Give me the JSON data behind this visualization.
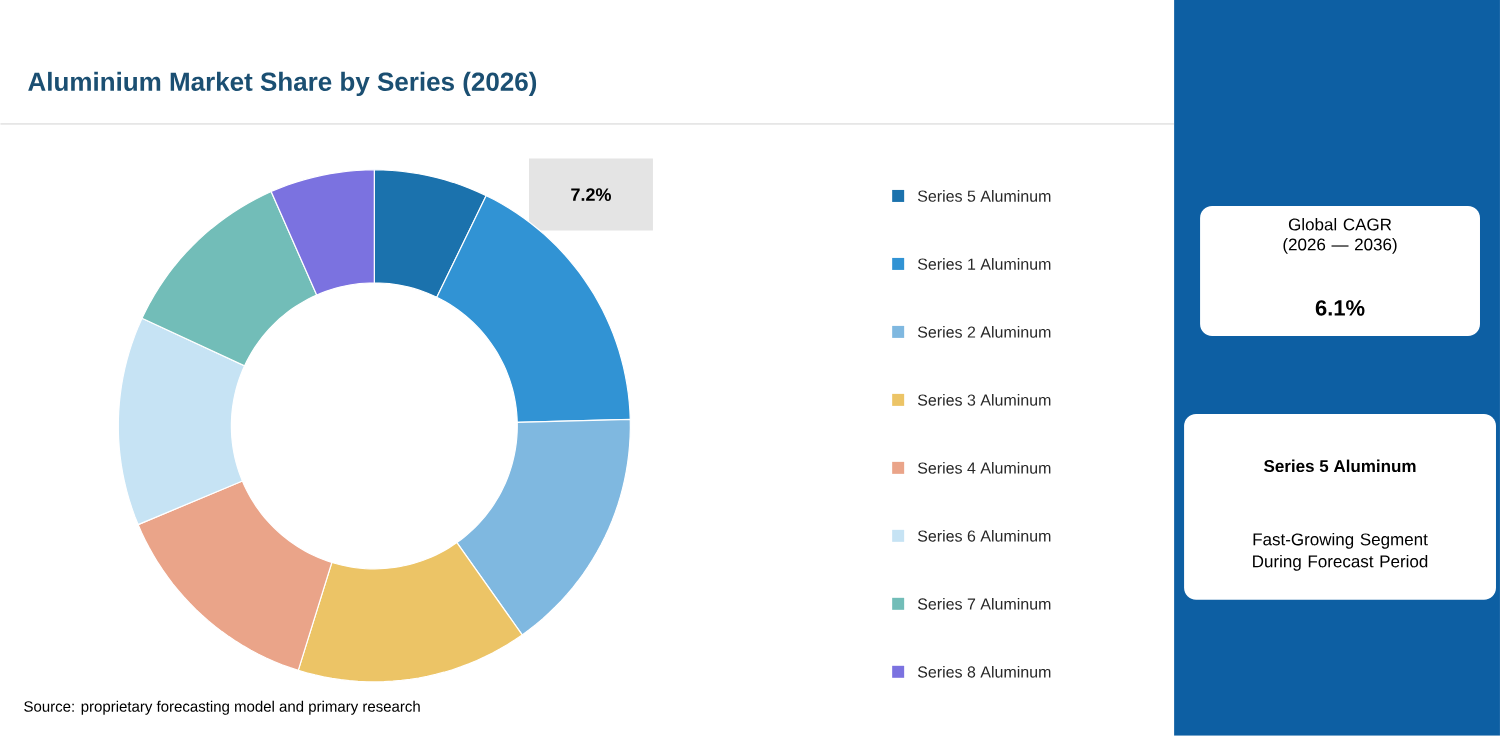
{
  "chart_data": {
    "type": "donut",
    "title": "Aluminium Market Share by Series (2026)",
    "categories": [
      "Series 5 Aluminum",
      "Series 1 Aluminum",
      "Series 2 Aluminum",
      "Series 3 Aluminum",
      "Series 4 Aluminum",
      "Series 6 Aluminum",
      "Series 7 Aluminum",
      "Series 8 Aluminum"
    ],
    "values": [
      7.2,
      17.4,
      15.6,
      14.6,
      13.9,
      13.2,
      11.5,
      6.6
    ],
    "colors": [
      "#1b72ad",
      "#3193d4",
      "#7fb8e0",
      "#ecc466",
      "#eaa489",
      "#c6e3f4",
      "#72bdb8",
      "#7b72e0"
    ],
    "value_labels": [
      "7.2%",
      null,
      null,
      null,
      null,
      null,
      null,
      null
    ],
    "legend": "right",
    "annotations": [
      "Source: proprietary forecasting model and primary research",
      "Global CAGR (2026 — 2036)",
      "6.1%",
      "Series 5 Aluminum",
      "Fast-Growing Segment During Forecast Period"
    ]
  }
}
